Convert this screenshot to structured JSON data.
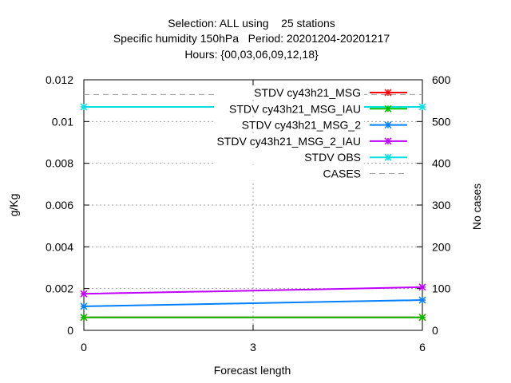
{
  "chart_data": {
    "type": "line",
    "title": [
      "Selection: ALL using    25 stations",
      "Specific humidity 150hPa   Period: 20201204-20201217",
      "Hours: {00,03,06,09,12,18}"
    ],
    "xlabel": "Forecast length",
    "ylabel": "g/Kg",
    "y2label": "No cases",
    "x": [
      0,
      3,
      6
    ],
    "xticks": [
      "0",
      "3",
      "6"
    ],
    "xlim": [
      0,
      6
    ],
    "ylim": [
      0,
      0.012
    ],
    "yticks": [
      "0",
      "0.002",
      "0.004",
      "0.006",
      "0.008",
      "0.01",
      "0.012"
    ],
    "y2lim": [
      0,
      600
    ],
    "y2ticks": [
      "0",
      "100",
      "200",
      "300",
      "400",
      "500",
      "600"
    ],
    "grid": true,
    "legend_position": "top-right",
    "series": [
      {
        "name": "STDV cy43h21_MSG",
        "color": "#ff0000",
        "axis": "left",
        "values": [
          0.00062,
          0.00062,
          0.00062
        ]
      },
      {
        "name": "STDV cy43h21_MSG_IAU",
        "color": "#00c000",
        "axis": "left",
        "values": [
          0.00062,
          0.00062,
          0.00062
        ]
      },
      {
        "name": "STDV cy43h21_MSG_2",
        "color": "#0080ff",
        "axis": "left",
        "values": [
          0.00115,
          0.0013,
          0.00145
        ]
      },
      {
        "name": "STDV cy43h21_MSG_2_IAU",
        "color": "#c000ff",
        "axis": "left",
        "values": [
          0.00175,
          0.0019,
          0.00207
        ]
      },
      {
        "name": "STDV OBS",
        "color": "#00e0e0",
        "axis": "left",
        "values": [
          0.0107,
          0.0107,
          0.0107
        ]
      },
      {
        "name": "CASES",
        "color": "#a0a0a0",
        "axis": "right",
        "dashed": true,
        "values": [
          565,
          565,
          565
        ]
      }
    ]
  }
}
